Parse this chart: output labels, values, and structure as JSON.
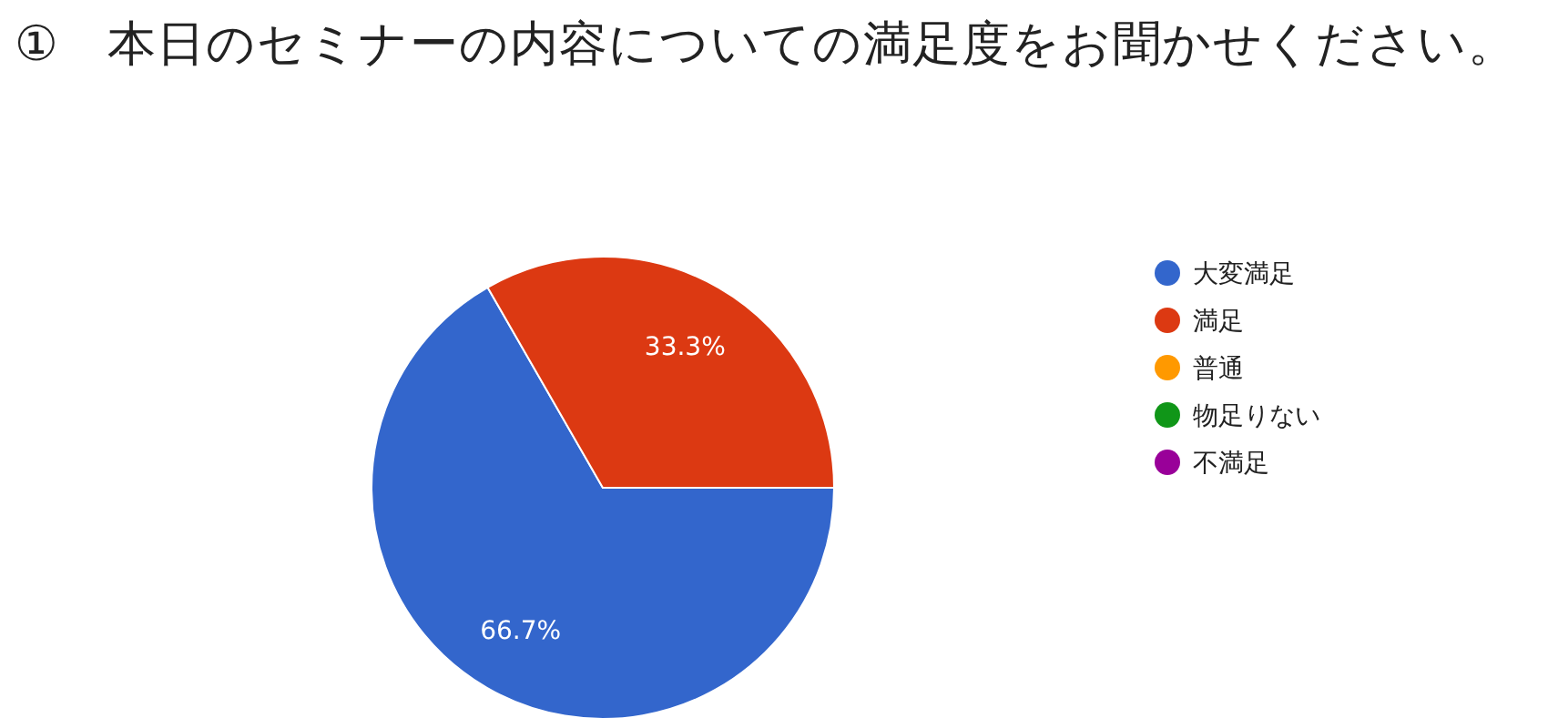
{
  "chart_data": {
    "type": "pie",
    "title": "①　本日のセミナーの内容についての満足度をお聞かせください。",
    "categories": [
      "大変満足",
      "満足",
      "普通",
      "物足りない",
      "不満足"
    ],
    "values": [
      66.7,
      33.3,
      0,
      0,
      0
    ],
    "colors": [
      "#3366cc",
      "#dc3912",
      "#ff9900",
      "#109618",
      "#990099"
    ],
    "value_labels": [
      "66.7%",
      "33.3%",
      null,
      null,
      null
    ],
    "legend": "right"
  }
}
